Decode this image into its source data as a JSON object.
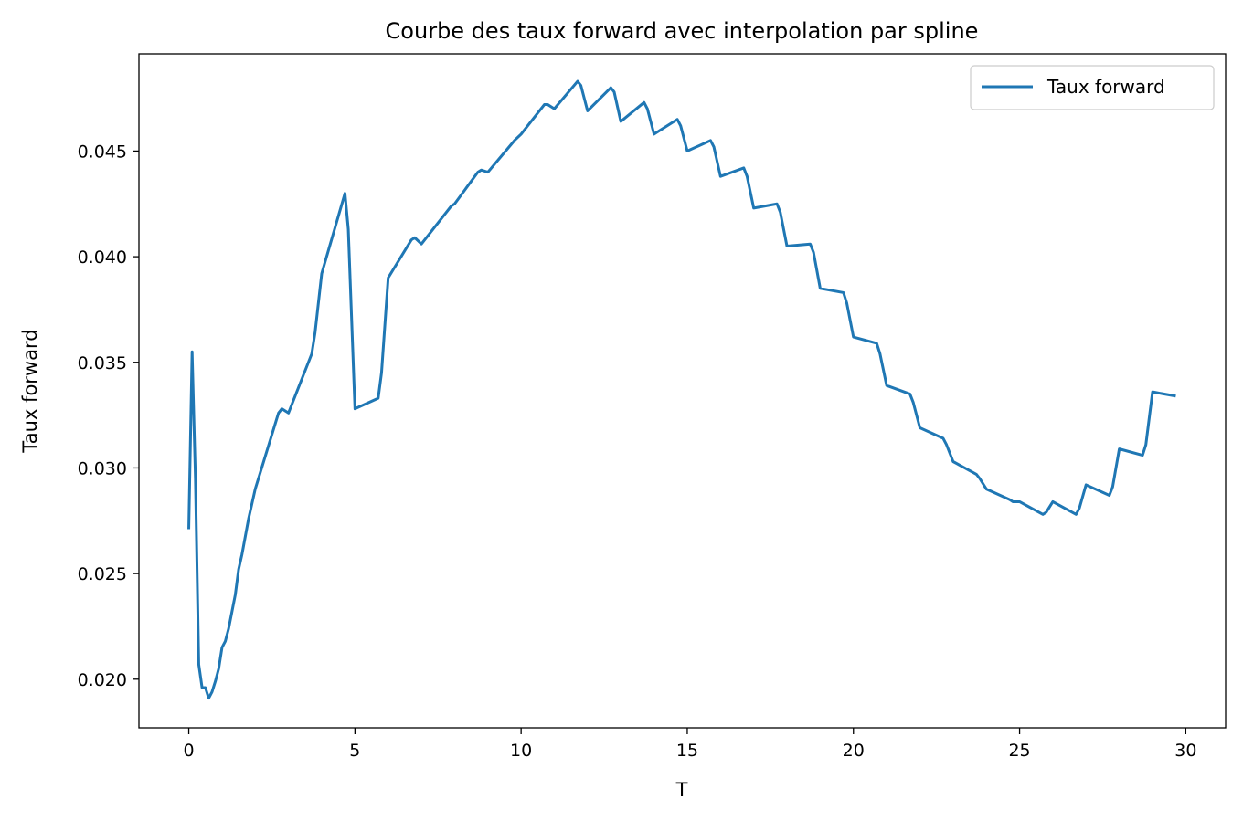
{
  "chart_data": {
    "type": "line",
    "title": "Courbe des taux forward avec interpolation par spline",
    "xlabel": "T",
    "ylabel": "Taux forward",
    "xlim": [
      -1.5,
      31.2
    ],
    "ylim": [
      0.0177,
      0.0496
    ],
    "xticks": [
      0,
      5,
      10,
      15,
      20,
      25,
      30
    ],
    "yticks": [
      0.02,
      0.025,
      0.03,
      0.035,
      0.04,
      0.045
    ],
    "xtick_labels": [
      "0",
      "5",
      "10",
      "15",
      "20",
      "25",
      "30"
    ],
    "ytick_labels": [
      "0.020",
      "0.025",
      "0.030",
      "0.035",
      "0.040",
      "0.045"
    ],
    "grid": false,
    "legend": {
      "position": "top-right",
      "entries": [
        "Taux forward"
      ]
    },
    "colors": {
      "series": "#1f77b4"
    },
    "series": [
      {
        "name": "Taux forward",
        "x": [
          0.0,
          0.1,
          0.2,
          0.3,
          0.4,
          0.5,
          0.6,
          0.7,
          0.8,
          0.9,
          1.0,
          1.1,
          1.2,
          1.4,
          1.5,
          1.6,
          1.8,
          2.0,
          2.7,
          2.8,
          3.0,
          3.7,
          3.8,
          4.0,
          4.7,
          4.8,
          5.0,
          5.7,
          5.8,
          6.0,
          6.7,
          6.8,
          7.0,
          7.8,
          7.9,
          8.0,
          8.7,
          8.8,
          9.0,
          9.8,
          10.0,
          10.7,
          10.8,
          11.0,
          11.7,
          11.8,
          12.0,
          12.7,
          12.8,
          13.0,
          13.7,
          13.8,
          14.0,
          14.7,
          14.8,
          15.0,
          15.7,
          15.8,
          16.0,
          16.7,
          16.8,
          17.0,
          17.7,
          17.8,
          18.0,
          18.7,
          18.8,
          19.0,
          19.7,
          19.8,
          20.0,
          20.7,
          20.8,
          21.0,
          21.7,
          21.8,
          22.0,
          22.7,
          22.8,
          23.0,
          23.7,
          23.8,
          24.0,
          24.7,
          24.8,
          25.0,
          25.7,
          25.8,
          26.0,
          26.7,
          26.8,
          27.0,
          27.7,
          27.8,
          28.0,
          28.7,
          28.8,
          29.0,
          29.7
        ],
        "values": [
          0.0271,
          0.0355,
          0.0295,
          0.0207,
          0.0196,
          0.0196,
          0.0191,
          0.0194,
          0.0199,
          0.0205,
          0.0215,
          0.0218,
          0.0224,
          0.024,
          0.0252,
          0.0259,
          0.0276,
          0.029,
          0.0326,
          0.0328,
          0.0326,
          0.0354,
          0.0364,
          0.0392,
          0.043,
          0.0413,
          0.0328,
          0.0333,
          0.0345,
          0.039,
          0.0408,
          0.0409,
          0.0406,
          0.0422,
          0.0424,
          0.0425,
          0.044,
          0.0441,
          0.044,
          0.0455,
          0.0458,
          0.0472,
          0.0472,
          0.047,
          0.0483,
          0.0481,
          0.0469,
          0.048,
          0.0478,
          0.0464,
          0.0473,
          0.047,
          0.0458,
          0.0465,
          0.0462,
          0.045,
          0.0455,
          0.0452,
          0.0438,
          0.0442,
          0.0438,
          0.0423,
          0.0425,
          0.0421,
          0.0405,
          0.0406,
          0.0402,
          0.0385,
          0.0383,
          0.0378,
          0.0362,
          0.0359,
          0.0354,
          0.0339,
          0.0335,
          0.0331,
          0.0319,
          0.0314,
          0.0311,
          0.0303,
          0.0297,
          0.0295,
          0.029,
          0.0285,
          0.0284,
          0.0284,
          0.0278,
          0.0279,
          0.0284,
          0.0278,
          0.0281,
          0.0292,
          0.0287,
          0.0291,
          0.0309,
          0.0306,
          0.0311,
          0.0336,
          0.0334
        ]
      }
    ]
  }
}
